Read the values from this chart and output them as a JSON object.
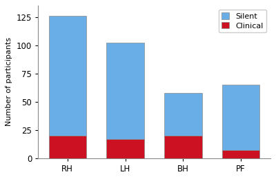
{
  "categories": [
    "RH",
    "LH",
    "BH",
    "PF"
  ],
  "clinical_values": [
    20,
    17,
    20,
    7
  ],
  "silent_values": [
    106,
    85,
    38,
    58
  ],
  "clinical_color": "#cc1122",
  "silent_color": "#6aaee8",
  "ylabel": "Number of participants",
  "yticks": [
    0,
    25,
    50,
    75,
    100,
    125
  ],
  "ylim": [
    0,
    135
  ],
  "legend_labels": [
    "Silent",
    "Clinical"
  ],
  "bar_width": 0.65,
  "background_color": "#ffffff",
  "edge_color": "#888888"
}
